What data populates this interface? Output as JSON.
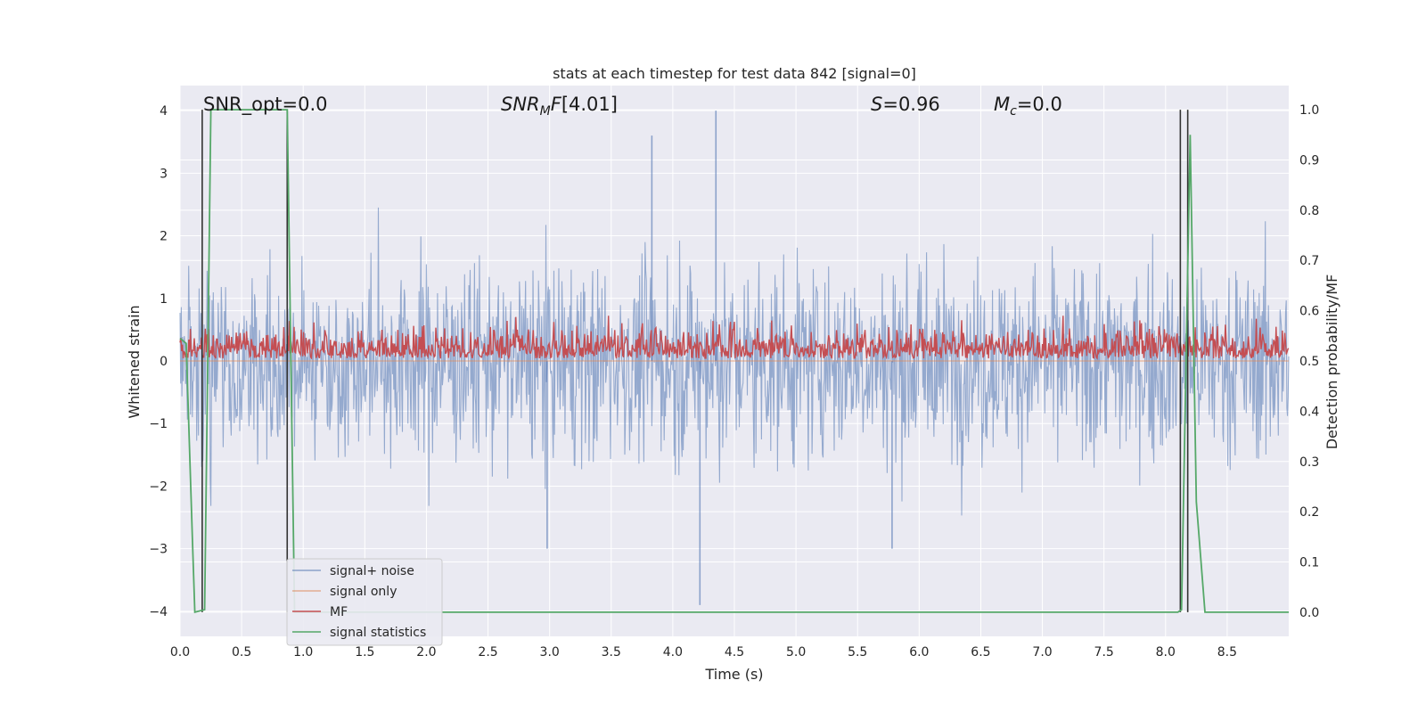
{
  "chart_data": {
    "type": "line",
    "title": "stats at each timestep for test data 842 [signal=0]",
    "xlabel": "Time (s)",
    "ylabel_left": "Whitened strain",
    "ylabel_right": "Detection probability/MF",
    "xlim": [
      0.0,
      9.0
    ],
    "ylim_left": [
      -4.4,
      4.4
    ],
    "ylim_right": [
      -0.048,
      1.048
    ],
    "x_ticks": [
      "0.0",
      "0.5",
      "1.0",
      "1.5",
      "2.0",
      "2.5",
      "3.0",
      "3.5",
      "4.0",
      "4.5",
      "5.0",
      "5.5",
      "6.0",
      "6.5",
      "7.0",
      "7.5",
      "8.0",
      "8.5"
    ],
    "y_ticks_left": [
      "−4",
      "−3",
      "−2",
      "−1",
      "0",
      "1",
      "2",
      "3",
      "4"
    ],
    "y_ticks_right": [
      "0.0",
      "0.1",
      "0.2",
      "0.3",
      "0.4",
      "0.5",
      "0.6",
      "0.7",
      "0.8",
      "0.9",
      "1.0"
    ],
    "grid": true,
    "legend_position": "lower-left",
    "annotations": {
      "snr_opt": "SNR_opt=0.0",
      "snr_mf": "[4.01]",
      "s": "=0.96",
      "mc": "=0.0"
    },
    "series": [
      {
        "name": "signal+ noise",
        "axis": "left",
        "color": "#4c72b0",
        "description_range": [
          -2.5,
          2.5
        ],
        "spikes": [
          {
            "x": 4.22,
            "y": -3.9
          },
          {
            "x": 4.35,
            "y": 4.0
          },
          {
            "x": 3.83,
            "y": 3.6
          },
          {
            "x": 5.78,
            "y": -3.0
          },
          {
            "x": 2.98,
            "y": -3.0
          }
        ]
      },
      {
        "name": "signal only",
        "axis": "left",
        "color": "#dd8452",
        "values_constant": 0.0
      },
      {
        "name": "MF",
        "axis": "right",
        "color": "#c44e52",
        "range": [
          0.5,
          0.6
        ]
      },
      {
        "name": "signal statistics",
        "axis": "right",
        "color": "#55a868",
        "x": [
          0.0,
          0.05,
          0.1,
          0.12,
          0.2,
          0.25,
          0.87,
          0.9,
          0.93,
          1.0,
          8.1,
          8.13,
          8.2,
          8.25,
          8.32,
          9.0
        ],
        "y": [
          0.545,
          0.535,
          0.15,
          0.0,
          0.005,
          1.0,
          1.0,
          0.5,
          0.0,
          0.0,
          0.0,
          0.005,
          0.95,
          0.22,
          0.0,
          0.0
        ]
      }
    ],
    "vertical_markers": [
      0.18,
      0.87,
      8.12,
      8.18
    ]
  }
}
